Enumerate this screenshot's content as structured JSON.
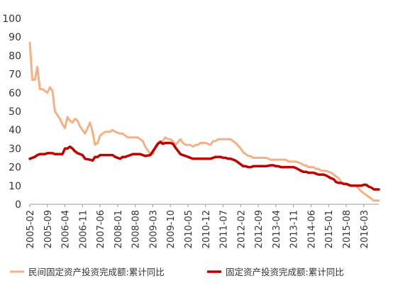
{
  "chart_data": {
    "type": "line",
    "ylim": [
      0,
      100
    ],
    "yticks": [
      0,
      10,
      20,
      30,
      40,
      50,
      60,
      70,
      80,
      90,
      100
    ],
    "grid": false,
    "legend_position": "bottom",
    "xtick_labels": [
      "2005-02",
      "2005-09",
      "2006-04",
      "2006-11",
      "2007-06",
      "2008-01",
      "2008-08",
      "2009-03",
      "2009-10",
      "2010-05",
      "2010-12",
      "2011-07",
      "2012-02",
      "2012-09",
      "2013-04",
      "2013-11",
      "2014-06",
      "2015-01",
      "2015-08",
      "2016-03"
    ],
    "series": [
      {
        "name": "民间固定资产投资完成额:累计同比",
        "color": "#F4B183",
        "points": [
          [
            "2005-02",
            87
          ],
          [
            "2005-03",
            67
          ],
          [
            "2005-04",
            67
          ],
          [
            "2005-05",
            74
          ],
          [
            "2005-06",
            62
          ],
          [
            "2005-07",
            62
          ],
          [
            "2005-08",
            61
          ],
          [
            "2005-09",
            60
          ],
          [
            "2005-10",
            63
          ],
          [
            "2005-11",
            61
          ],
          [
            "2005-12",
            50
          ],
          [
            "2006-02",
            46
          ],
          [
            "2006-03",
            43
          ],
          [
            "2006-04",
            41
          ],
          [
            "2006-05",
            47
          ],
          [
            "2006-06",
            45
          ],
          [
            "2006-07",
            44
          ],
          [
            "2006-08",
            46
          ],
          [
            "2006-09",
            45
          ],
          [
            "2006-10",
            42
          ],
          [
            "2006-11",
            40
          ],
          [
            "2006-12",
            38
          ],
          [
            "2007-02",
            44
          ],
          [
            "2007-03",
            39
          ],
          [
            "2007-04",
            32
          ],
          [
            "2007-05",
            33
          ],
          [
            "2007-06",
            37
          ],
          [
            "2007-07",
            38
          ],
          [
            "2007-08",
            39
          ],
          [
            "2007-09",
            39
          ],
          [
            "2007-10",
            39
          ],
          [
            "2007-11",
            40
          ],
          [
            "2007-12",
            39
          ],
          [
            "2008-02",
            38
          ],
          [
            "2008-03",
            38
          ],
          [
            "2008-04",
            37
          ],
          [
            "2008-05",
            36
          ],
          [
            "2008-06",
            36
          ],
          [
            "2008-07",
            36
          ],
          [
            "2008-08",
            36
          ],
          [
            "2008-09",
            36
          ],
          [
            "2008-10",
            35
          ],
          [
            "2008-11",
            34
          ],
          [
            "2008-12",
            31
          ],
          [
            "2009-02",
            27
          ],
          [
            "2009-03",
            27
          ],
          [
            "2009-04",
            31
          ],
          [
            "2009-05",
            33
          ],
          [
            "2009-06",
            34
          ],
          [
            "2009-07",
            34
          ],
          [
            "2009-08",
            36
          ],
          [
            "2009-09",
            35
          ],
          [
            "2009-10",
            35
          ],
          [
            "2009-11",
            34
          ],
          [
            "2009-12",
            32
          ],
          [
            "2010-02",
            35
          ],
          [
            "2010-03",
            33
          ],
          [
            "2010-04",
            32
          ],
          [
            "2010-05",
            32
          ],
          [
            "2010-06",
            32
          ],
          [
            "2010-07",
            31
          ],
          [
            "2010-08",
            32
          ],
          [
            "2010-09",
            32
          ],
          [
            "2010-10",
            33
          ],
          [
            "2010-11",
            33
          ],
          [
            "2010-12",
            33
          ],
          [
            "2011-02",
            32
          ],
          [
            "2011-03",
            34
          ],
          [
            "2011-04",
            34
          ],
          [
            "2011-05",
            35
          ],
          [
            "2011-06",
            35
          ],
          [
            "2011-07",
            35
          ],
          [
            "2011-08",
            35
          ],
          [
            "2011-09",
            35
          ],
          [
            "2011-10",
            35
          ],
          [
            "2011-11",
            34
          ],
          [
            "2011-12",
            33
          ],
          [
            "2012-02",
            30
          ],
          [
            "2012-03",
            28
          ],
          [
            "2012-04",
            27
          ],
          [
            "2012-05",
            26
          ],
          [
            "2012-06",
            26
          ],
          [
            "2012-07",
            25
          ],
          [
            "2012-08",
            25
          ],
          [
            "2012-09",
            25
          ],
          [
            "2012-10",
            25
          ],
          [
            "2012-11",
            25
          ],
          [
            "2012-12",
            25
          ],
          [
            "2013-02",
            24
          ],
          [
            "2013-03",
            24
          ],
          [
            "2013-04",
            24
          ],
          [
            "2013-05",
            24
          ],
          [
            "2013-06",
            24
          ],
          [
            "2013-07",
            24
          ],
          [
            "2013-08",
            24
          ],
          [
            "2013-09",
            23
          ],
          [
            "2013-10",
            23
          ],
          [
            "2013-11",
            23
          ],
          [
            "2013-12",
            23
          ],
          [
            "2014-02",
            22
          ],
          [
            "2014-03",
            21
          ],
          [
            "2014-04",
            21
          ],
          [
            "2014-05",
            20
          ],
          [
            "2014-06",
            20
          ],
          [
            "2014-07",
            20
          ],
          [
            "2014-08",
            19
          ],
          [
            "2014-09",
            19
          ],
          [
            "2014-10",
            18
          ],
          [
            "2014-11",
            18
          ],
          [
            "2014-12",
            18
          ],
          [
            "2015-02",
            17
          ],
          [
            "2015-03",
            16
          ],
          [
            "2015-04",
            15
          ],
          [
            "2015-05",
            14
          ],
          [
            "2015-06",
            12
          ],
          [
            "2015-07",
            11
          ],
          [
            "2015-08",
            11
          ],
          [
            "2015-09",
            10
          ],
          [
            "2015-10",
            10
          ],
          [
            "2015-11",
            10
          ],
          [
            "2015-12",
            10
          ],
          [
            "2016-02",
            7
          ],
          [
            "2016-03",
            6
          ],
          [
            "2016-04",
            5
          ],
          [
            "2016-05",
            4
          ],
          [
            "2016-06",
            3
          ],
          [
            "2016-07",
            2
          ],
          [
            "2016-08",
            2
          ],
          [
            "2016-09",
            2
          ]
        ]
      },
      {
        "name": "固定资产投资完成额:累计同比",
        "color": "#C00000",
        "points": [
          [
            "2005-02",
            24.5
          ],
          [
            "2005-03",
            25
          ],
          [
            "2005-04",
            25.5
          ],
          [
            "2005-05",
            26.5
          ],
          [
            "2005-06",
            27
          ],
          [
            "2005-07",
            27
          ],
          [
            "2005-08",
            27
          ],
          [
            "2005-09",
            27.5
          ],
          [
            "2005-10",
            27.5
          ],
          [
            "2005-11",
            27.5
          ],
          [
            "2005-12",
            27
          ],
          [
            "2006-02",
            27
          ],
          [
            "2006-03",
            27
          ],
          [
            "2006-04",
            30
          ],
          [
            "2006-05",
            30
          ],
          [
            "2006-06",
            31
          ],
          [
            "2006-07",
            30
          ],
          [
            "2006-08",
            28.5
          ],
          [
            "2006-09",
            27.5
          ],
          [
            "2006-10",
            27
          ],
          [
            "2006-11",
            26.5
          ],
          [
            "2006-12",
            24.5
          ],
          [
            "2007-02",
            24
          ],
          [
            "2007-03",
            23.5
          ],
          [
            "2007-04",
            25.5
          ],
          [
            "2007-05",
            25.5
          ],
          [
            "2007-06",
            26.5
          ],
          [
            "2007-07",
            26.5
          ],
          [
            "2007-08",
            26.5
          ],
          [
            "2007-09",
            26.5
          ],
          [
            "2007-10",
            26.5
          ],
          [
            "2007-11",
            26.5
          ],
          [
            "2007-12",
            25.5
          ],
          [
            "2008-02",
            24.5
          ],
          [
            "2008-03",
            25.5
          ],
          [
            "2008-04",
            25.5
          ],
          [
            "2008-05",
            26
          ],
          [
            "2008-06",
            26.5
          ],
          [
            "2008-07",
            27
          ],
          [
            "2008-08",
            27
          ],
          [
            "2008-09",
            27
          ],
          [
            "2008-10",
            27
          ],
          [
            "2008-11",
            26.5
          ],
          [
            "2008-12",
            26
          ],
          [
            "2009-02",
            26.5
          ],
          [
            "2009-03",
            28.5
          ],
          [
            "2009-04",
            30.5
          ],
          [
            "2009-05",
            32.5
          ],
          [
            "2009-06",
            33.5
          ],
          [
            "2009-07",
            32.5
          ],
          [
            "2009-08",
            33
          ],
          [
            "2009-09",
            33
          ],
          [
            "2009-10",
            33
          ],
          [
            "2009-11",
            32.5
          ],
          [
            "2009-12",
            30.5
          ],
          [
            "2010-02",
            27
          ],
          [
            "2010-03",
            26.5
          ],
          [
            "2010-04",
            26
          ],
          [
            "2010-05",
            25.5
          ],
          [
            "2010-06",
            25
          ],
          [
            "2010-07",
            24.5
          ],
          [
            "2010-08",
            24.5
          ],
          [
            "2010-09",
            24.5
          ],
          [
            "2010-10",
            24.5
          ],
          [
            "2010-11",
            24.5
          ],
          [
            "2010-12",
            24.5
          ],
          [
            "2011-02",
            24.5
          ],
          [
            "2011-03",
            25
          ],
          [
            "2011-04",
            25.5
          ],
          [
            "2011-05",
            25.5
          ],
          [
            "2011-06",
            25.5
          ],
          [
            "2011-07",
            25
          ],
          [
            "2011-08",
            25
          ],
          [
            "2011-09",
            24.5
          ],
          [
            "2011-10",
            24.5
          ],
          [
            "2011-11",
            24
          ],
          [
            "2011-12",
            23.5
          ],
          [
            "2012-02",
            21.5
          ],
          [
            "2012-03",
            20.5
          ],
          [
            "2012-04",
            20.5
          ],
          [
            "2012-05",
            20
          ],
          [
            "2012-06",
            20
          ],
          [
            "2012-07",
            20.5
          ],
          [
            "2012-08",
            20.5
          ],
          [
            "2012-09",
            20.5
          ],
          [
            "2012-10",
            20.5
          ],
          [
            "2012-11",
            20.5
          ],
          [
            "2012-12",
            20.5
          ],
          [
            "2013-02",
            21
          ],
          [
            "2013-03",
            21
          ],
          [
            "2013-04",
            20.5
          ],
          [
            "2013-05",
            20.5
          ],
          [
            "2013-06",
            20
          ],
          [
            "2013-07",
            20
          ],
          [
            "2013-08",
            20
          ],
          [
            "2013-09",
            20
          ],
          [
            "2013-10",
            20
          ],
          [
            "2013-11",
            20
          ],
          [
            "2013-12",
            19.5
          ],
          [
            "2014-02",
            18
          ],
          [
            "2014-03",
            17.5
          ],
          [
            "2014-04",
            17.5
          ],
          [
            "2014-05",
            17
          ],
          [
            "2014-06",
            17
          ],
          [
            "2014-07",
            17
          ],
          [
            "2014-08",
            16.5
          ],
          [
            "2014-09",
            16
          ],
          [
            "2014-10",
            16
          ],
          [
            "2014-11",
            16
          ],
          [
            "2014-12",
            15.5
          ],
          [
            "2015-02",
            14
          ],
          [
            "2015-03",
            13.5
          ],
          [
            "2015-04",
            12
          ],
          [
            "2015-05",
            11.5
          ],
          [
            "2015-06",
            11.5
          ],
          [
            "2015-07",
            11
          ],
          [
            "2015-08",
            11
          ],
          [
            "2015-09",
            10.5
          ],
          [
            "2015-10",
            10
          ],
          [
            "2015-11",
            10
          ],
          [
            "2015-12",
            10
          ],
          [
            "2016-02",
            10
          ],
          [
            "2016-03",
            10.5
          ],
          [
            "2016-04",
            10.5
          ],
          [
            "2016-05",
            9.5
          ],
          [
            "2016-06",
            9
          ],
          [
            "2016-07",
            8
          ],
          [
            "2016-08",
            8
          ],
          [
            "2016-09",
            8
          ]
        ]
      }
    ]
  }
}
